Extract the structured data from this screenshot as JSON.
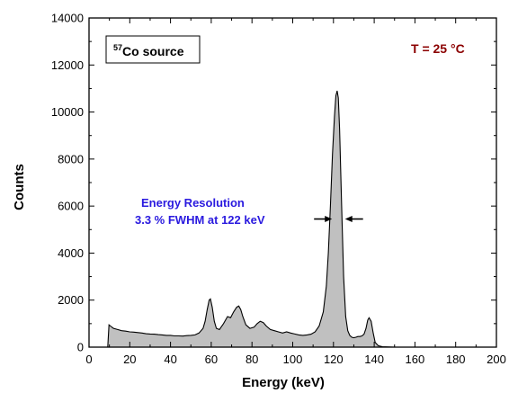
{
  "chart_data": {
    "type": "area",
    "xlabel": "Energy (keV)",
    "ylabel": "Counts",
    "xlim": [
      0,
      200
    ],
    "ylim": [
      0,
      14000
    ],
    "x_ticks": [
      "0",
      "20",
      "40",
      "60",
      "80",
      "100",
      "120",
      "140",
      "160",
      "180",
      "200"
    ],
    "y_ticks": [
      "0",
      "2000",
      "4000",
      "6000",
      "8000",
      "10000",
      "12000",
      "14000"
    ],
    "grid": false,
    "legend": {
      "superscript": "57",
      "text": "Co source",
      "position": "top-left"
    },
    "annotations": {
      "temperature": "T = 25 °C",
      "resolution_title": "Energy Resolution",
      "resolution_value": "3.3 % FWHM at 122 keV",
      "arrow_level": 5450,
      "arrow_left_tip_x": 119.3,
      "arrow_right_tip_x": 125.7
    },
    "series": [
      {
        "x": [
          9.2,
          9.8,
          10.5,
          12,
          14,
          16,
          18,
          20,
          22,
          24,
          26,
          28,
          30,
          32,
          34,
          36,
          38,
          40,
          42,
          44,
          46,
          48,
          50,
          52,
          54,
          56,
          57,
          58,
          59,
          59.6,
          60.5,
          61.5,
          62.5,
          64,
          66,
          68,
          69.5,
          71,
          72.5,
          73.5,
          74.5,
          75.5,
          77,
          79,
          81,
          82.5,
          84,
          85.5,
          87,
          89,
          91,
          93,
          95,
          97,
          99,
          101,
          103,
          105,
          107,
          109,
          111,
          113,
          115,
          116.5,
          117.5,
          118.5,
          119.5,
          120.5,
          121.2,
          121.8,
          122.4,
          123,
          124,
          125,
          126,
          127,
          128,
          129,
          130,
          131,
          132,
          133,
          134,
          135,
          136,
          136.8,
          137.5,
          138.5,
          139.5,
          140.5,
          142,
          144,
          150,
          160,
          170,
          180,
          190,
          200
        ],
        "y": [
          0,
          950,
          900,
          800,
          750,
          700,
          680,
          650,
          640,
          620,
          600,
          570,
          560,
          550,
          530,
          520,
          500,
          500,
          480,
          480,
          470,
          490,
          500,
          520,
          600,
          800,
          1100,
          1600,
          2000,
          2050,
          1700,
          1100,
          800,
          750,
          1000,
          1300,
          1250,
          1500,
          1700,
          1750,
          1600,
          1300,
          950,
          800,
          850,
          1000,
          1100,
          1050,
          900,
          750,
          700,
          650,
          600,
          650,
          600,
          560,
          520,
          500,
          520,
          550,
          650,
          900,
          1500,
          2600,
          4000,
          6000,
          8200,
          9800,
          10700,
          10900,
          10600,
          9300,
          6000,
          3000,
          1300,
          700,
          500,
          420,
          400,
          420,
          450,
          450,
          480,
          550,
          800,
          1150,
          1250,
          1100,
          600,
          200,
          60,
          20,
          0,
          0,
          0,
          0,
          0,
          0
        ]
      }
    ]
  }
}
